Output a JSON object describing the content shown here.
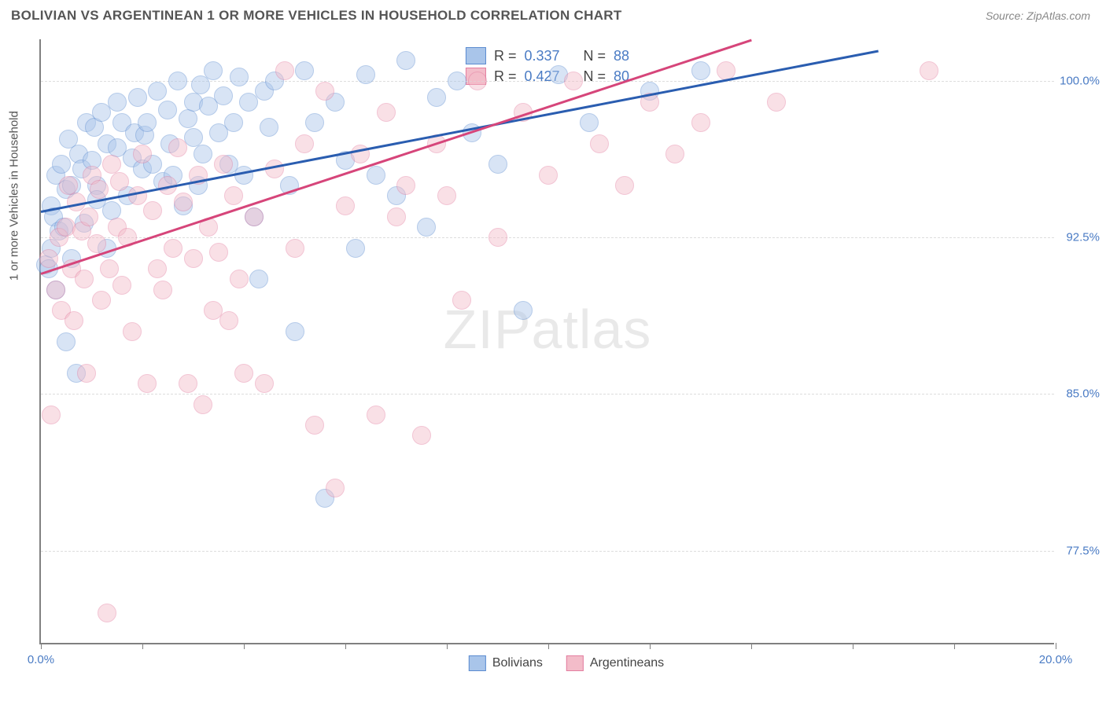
{
  "header": {
    "title": "BOLIVIAN VS ARGENTINEAN 1 OR MORE VEHICLES IN HOUSEHOLD CORRELATION CHART",
    "source": "Source: ZipAtlas.com"
  },
  "watermark": {
    "zip": "ZIP",
    "atlas": "atlas"
  },
  "chart": {
    "type": "scatter",
    "background_color": "#ffffff",
    "grid_color": "#dddddd",
    "axis_color": "#808080",
    "tick_label_color": "#4a7bc4",
    "axis_label_color": "#555555",
    "y_axis_label": "1 or more Vehicles in Household",
    "xlim": [
      0,
      20
    ],
    "ylim": [
      73,
      102
    ],
    "xticks": [
      0,
      2,
      4,
      6,
      8,
      10,
      12,
      14,
      16,
      18,
      20
    ],
    "xtick_labels_shown": {
      "0": "0.0%",
      "20": "20.0%"
    },
    "yticks": [
      77.5,
      85.0,
      92.5,
      100.0
    ],
    "ytick_labels": [
      "77.5%",
      "85.0%",
      "92.5%",
      "100.0%"
    ],
    "marker_radius": 12,
    "marker_opacity": 0.45,
    "line_width": 2.5,
    "series": [
      {
        "name": "Bolivians",
        "fill": "#a9c5ea",
        "stroke": "#5b8bd0",
        "line_color": "#2a5db0",
        "r_label": "R =",
        "r_value": "0.337",
        "n_label": "N =",
        "n_value": "88",
        "trend": {
          "x1": 0,
          "y1": 93.8,
          "x2": 16.5,
          "y2": 101.5
        },
        "points": [
          [
            0.1,
            91.2
          ],
          [
            0.15,
            91.0
          ],
          [
            0.2,
            92.0
          ],
          [
            0.2,
            94.0
          ],
          [
            0.25,
            93.5
          ],
          [
            0.3,
            95.5
          ],
          [
            0.3,
            90.0
          ],
          [
            0.35,
            92.8
          ],
          [
            0.4,
            96.0
          ],
          [
            0.45,
            93.0
          ],
          [
            0.5,
            94.8
          ],
          [
            0.5,
            87.5
          ],
          [
            0.55,
            97.2
          ],
          [
            0.6,
            95.0
          ],
          [
            0.6,
            91.5
          ],
          [
            0.7,
            86.0
          ],
          [
            0.75,
            96.5
          ],
          [
            0.8,
            95.8
          ],
          [
            0.85,
            93.2
          ],
          [
            0.9,
            98.0
          ],
          [
            1.0,
            96.2
          ],
          [
            1.05,
            97.8
          ],
          [
            1.1,
            95.0
          ],
          [
            1.1,
            94.3
          ],
          [
            1.2,
            98.5
          ],
          [
            1.3,
            97.0
          ],
          [
            1.3,
            92.0
          ],
          [
            1.4,
            93.8
          ],
          [
            1.5,
            99.0
          ],
          [
            1.5,
            96.8
          ],
          [
            1.6,
            98.0
          ],
          [
            1.7,
            94.5
          ],
          [
            1.8,
            96.3
          ],
          [
            1.85,
            97.5
          ],
          [
            1.9,
            99.2
          ],
          [
            2.0,
            95.8
          ],
          [
            2.05,
            97.4
          ],
          [
            2.1,
            98.0
          ],
          [
            2.2,
            96.0
          ],
          [
            2.3,
            99.5
          ],
          [
            2.4,
            95.2
          ],
          [
            2.5,
            98.6
          ],
          [
            2.55,
            97.0
          ],
          [
            2.6,
            95.5
          ],
          [
            2.7,
            100.0
          ],
          [
            2.8,
            94.0
          ],
          [
            2.9,
            98.2
          ],
          [
            3.0,
            99.0
          ],
          [
            3.0,
            97.3
          ],
          [
            3.1,
            95.0
          ],
          [
            3.15,
            99.8
          ],
          [
            3.2,
            96.5
          ],
          [
            3.3,
            98.8
          ],
          [
            3.4,
            100.5
          ],
          [
            3.5,
            97.5
          ],
          [
            3.6,
            99.3
          ],
          [
            3.7,
            96.0
          ],
          [
            3.8,
            98.0
          ],
          [
            3.9,
            100.2
          ],
          [
            4.0,
            95.5
          ],
          [
            4.1,
            99.0
          ],
          [
            4.2,
            93.5
          ],
          [
            4.3,
            90.5
          ],
          [
            4.4,
            99.5
          ],
          [
            4.5,
            97.8
          ],
          [
            4.6,
            100.0
          ],
          [
            4.9,
            95.0
          ],
          [
            5.0,
            88.0
          ],
          [
            5.2,
            100.5
          ],
          [
            5.4,
            98.0
          ],
          [
            5.6,
            80.0
          ],
          [
            5.8,
            99.0
          ],
          [
            6.0,
            96.2
          ],
          [
            6.2,
            92.0
          ],
          [
            6.4,
            100.3
          ],
          [
            6.6,
            95.5
          ],
          [
            7.0,
            94.5
          ],
          [
            7.2,
            101.0
          ],
          [
            7.6,
            93.0
          ],
          [
            7.8,
            99.2
          ],
          [
            8.2,
            100.0
          ],
          [
            8.5,
            97.5
          ],
          [
            9.0,
            96.0
          ],
          [
            9.5,
            89.0
          ],
          [
            10.2,
            100.3
          ],
          [
            10.8,
            98.0
          ],
          [
            12.0,
            99.5
          ],
          [
            13.0,
            100.5
          ]
        ]
      },
      {
        "name": "Argentineans",
        "fill": "#f3bcc9",
        "stroke": "#e37ea0",
        "line_color": "#d6457a",
        "r_label": "R =",
        "r_value": "0.427",
        "n_label": "N =",
        "n_value": "80",
        "trend": {
          "x1": 0,
          "y1": 90.8,
          "x2": 14.0,
          "y2": 102.0
        },
        "points": [
          [
            0.15,
            91.5
          ],
          [
            0.2,
            84.0
          ],
          [
            0.3,
            90.0
          ],
          [
            0.35,
            92.5
          ],
          [
            0.4,
            89.0
          ],
          [
            0.5,
            93.0
          ],
          [
            0.55,
            95.0
          ],
          [
            0.6,
            91.0
          ],
          [
            0.65,
            88.5
          ],
          [
            0.7,
            94.2
          ],
          [
            0.8,
            92.8
          ],
          [
            0.85,
            90.5
          ],
          [
            0.9,
            86.0
          ],
          [
            0.95,
            93.5
          ],
          [
            1.0,
            95.5
          ],
          [
            1.1,
            92.2
          ],
          [
            1.15,
            94.8
          ],
          [
            1.2,
            89.5
          ],
          [
            1.3,
            74.5
          ],
          [
            1.35,
            91.0
          ],
          [
            1.4,
            96.0
          ],
          [
            1.5,
            93.0
          ],
          [
            1.55,
            95.2
          ],
          [
            1.6,
            90.2
          ],
          [
            1.7,
            92.5
          ],
          [
            1.8,
            88.0
          ],
          [
            1.9,
            94.5
          ],
          [
            2.0,
            96.5
          ],
          [
            2.1,
            85.5
          ],
          [
            2.2,
            93.8
          ],
          [
            2.3,
            91.0
          ],
          [
            2.4,
            90.0
          ],
          [
            2.5,
            95.0
          ],
          [
            2.6,
            92.0
          ],
          [
            2.7,
            96.8
          ],
          [
            2.8,
            94.2
          ],
          [
            2.9,
            85.5
          ],
          [
            3.0,
            91.5
          ],
          [
            3.1,
            95.5
          ],
          [
            3.2,
            84.5
          ],
          [
            3.3,
            93.0
          ],
          [
            3.4,
            89.0
          ],
          [
            3.5,
            91.8
          ],
          [
            3.6,
            96.0
          ],
          [
            3.7,
            88.5
          ],
          [
            3.8,
            94.5
          ],
          [
            3.9,
            90.5
          ],
          [
            4.0,
            86.0
          ],
          [
            4.2,
            93.5
          ],
          [
            4.4,
            85.5
          ],
          [
            4.6,
            95.8
          ],
          [
            4.8,
            100.5
          ],
          [
            5.0,
            92.0
          ],
          [
            5.2,
            97.0
          ],
          [
            5.4,
            83.5
          ],
          [
            5.6,
            99.5
          ],
          [
            5.8,
            80.5
          ],
          [
            6.0,
            94.0
          ],
          [
            6.3,
            96.5
          ],
          [
            6.6,
            84.0
          ],
          [
            6.8,
            98.5
          ],
          [
            7.0,
            93.5
          ],
          [
            7.2,
            95.0
          ],
          [
            7.5,
            83.0
          ],
          [
            7.8,
            97.0
          ],
          [
            8.0,
            94.5
          ],
          [
            8.3,
            89.5
          ],
          [
            8.6,
            100.0
          ],
          [
            9.0,
            92.5
          ],
          [
            9.5,
            98.5
          ],
          [
            10.0,
            95.5
          ],
          [
            10.5,
            100.0
          ],
          [
            11.0,
            97.0
          ],
          [
            11.5,
            95.0
          ],
          [
            12.0,
            99.0
          ],
          [
            12.5,
            96.5
          ],
          [
            13.0,
            98.0
          ],
          [
            13.5,
            100.5
          ],
          [
            14.5,
            99.0
          ],
          [
            17.5,
            100.5
          ]
        ]
      }
    ],
    "bottom_legend": [
      {
        "label": "Bolivians",
        "fill": "#a9c5ea",
        "stroke": "#5b8bd0"
      },
      {
        "label": "Argentineans",
        "fill": "#f3bcc9",
        "stroke": "#e37ea0"
      }
    ]
  }
}
